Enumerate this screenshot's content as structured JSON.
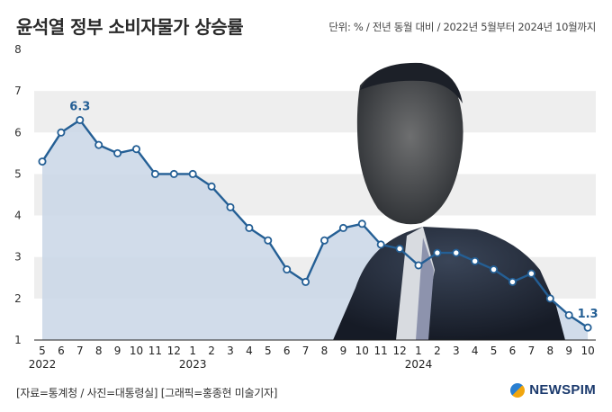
{
  "header": {
    "title": "윤석열 정부 소비자물가 상승률",
    "unit_note": "단위: % / 전년 동월 대비 / 2022년 5월부터 2024년 10월까지"
  },
  "footer": {
    "source": "[자료=통계청 / 사진=대통령실] [그래픽=홍종현 미술기자]",
    "brand": "NEWSPIM"
  },
  "colors": {
    "line": "#245f95",
    "area": "#c9d6e6",
    "band": "#eeeeee",
    "brand_blue": "#2a7fd1",
    "brand_orange": "#f1a60f"
  },
  "chart_data": {
    "type": "line",
    "x": [
      "5",
      "6",
      "7",
      "8",
      "9",
      "10",
      "11",
      "12",
      "1",
      "2",
      "3",
      "4",
      "5",
      "6",
      "7",
      "8",
      "9",
      "10",
      "11",
      "12",
      "1",
      "2",
      "3",
      "4",
      "5",
      "6",
      "7",
      "8",
      "9",
      "10"
    ],
    "year_labels": [
      {
        "index": 0,
        "label": "2022"
      },
      {
        "index": 8,
        "label": "2023"
      },
      {
        "index": 20,
        "label": "2024"
      }
    ],
    "values": [
      5.3,
      6.0,
      6.3,
      5.7,
      5.5,
      5.6,
      5.0,
      5.0,
      5.0,
      4.7,
      4.2,
      3.7,
      3.4,
      2.7,
      2.4,
      3.4,
      3.7,
      3.8,
      3.3,
      3.2,
      2.8,
      3.1,
      3.1,
      2.9,
      2.7,
      2.4,
      2.6,
      2.0,
      1.6,
      1.3
    ],
    "annotations": [
      {
        "index": 2,
        "label": "6.3"
      },
      {
        "index": 29,
        "label": "1.3"
      }
    ],
    "yticks": [
      1,
      2,
      3,
      4,
      5,
      6,
      7,
      8
    ],
    "ylim": [
      1,
      8
    ],
    "grid": "alternating horizontal bands",
    "title": "윤석열 정부 소비자물가 상승률",
    "xlabel": "",
    "ylabel": ""
  }
}
